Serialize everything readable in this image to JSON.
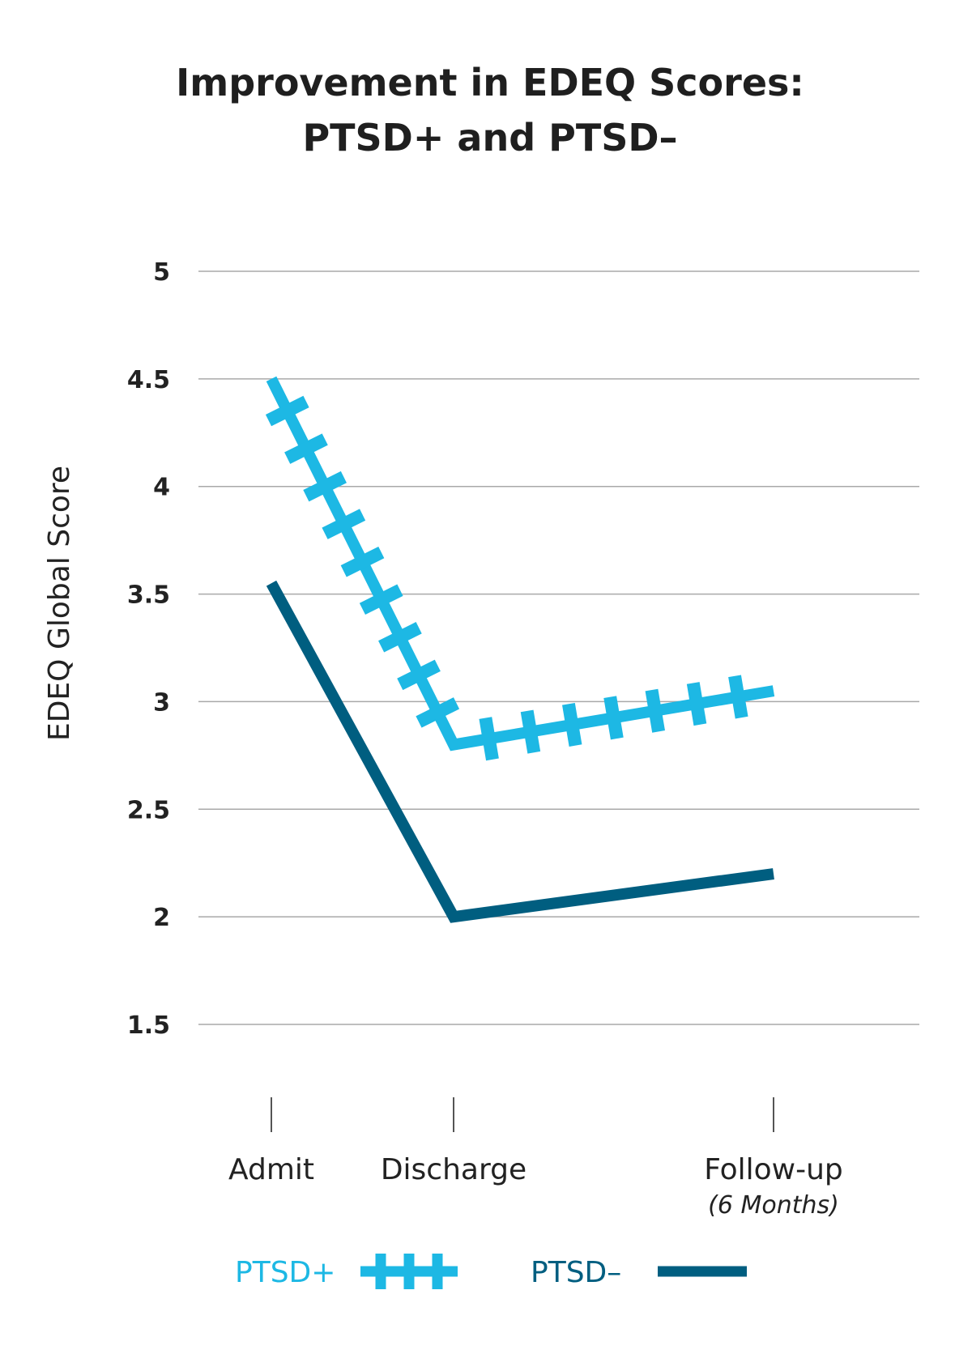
{
  "chart_data": {
    "type": "line",
    "title_line1": "Improvement in EDEQ Scores:",
    "title_line2": "PTSD+ and PTSD–",
    "ylabel": "EDEQ  Global  Score",
    "xlabel": "",
    "ylim": [
      1.5,
      5
    ],
    "yticks": [
      1.5,
      2,
      2.5,
      3,
      3.5,
      4,
      4.5,
      5
    ],
    "ytick_labels": [
      "1.5",
      "2",
      "2.5",
      "3",
      "3.5",
      "4",
      "4.5",
      "5"
    ],
    "grid": true,
    "categories": [
      "Admit",
      "Discharge",
      "Follow-up"
    ],
    "category_sublabels": [
      "",
      "",
      "(6 Months)"
    ],
    "legend_position": "bottom",
    "series": [
      {
        "name": "PTSD+",
        "values": [
          4.5,
          2.8,
          3.05
        ],
        "color": "#1DB8E4",
        "marker": "cross"
      },
      {
        "name": "PTSD–",
        "values": [
          3.55,
          2.0,
          2.2
        ],
        "color": "#005E80",
        "marker": "none"
      }
    ]
  }
}
